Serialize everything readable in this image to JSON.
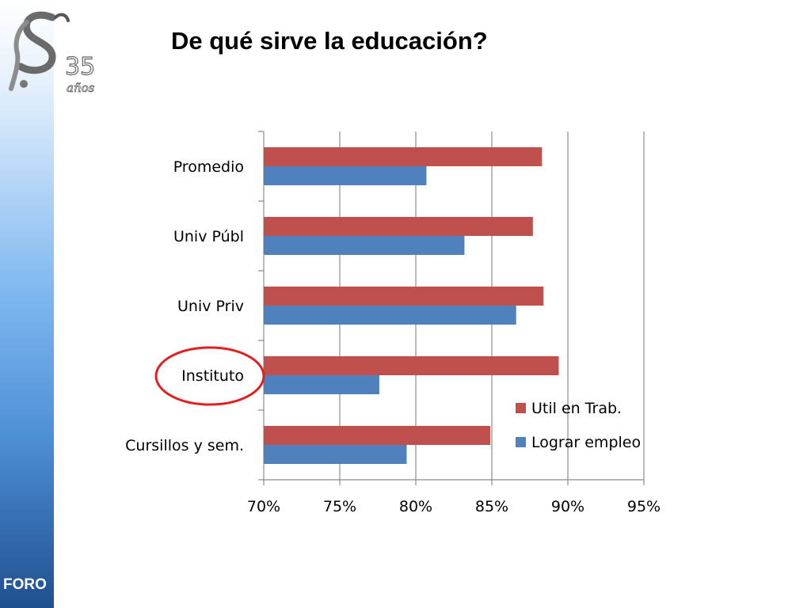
{
  "slide": {
    "title": "De qué sirve la educación?",
    "footer_label": "FORO",
    "logo_icon": "s-35-anos-logo-icon",
    "logo_text": "35 años"
  },
  "chart_data": {
    "type": "bar",
    "orientation": "horizontal",
    "categories": [
      "Promedio",
      "Univ Públ",
      "Univ Priv",
      "Instituto",
      "Cursillos y sem."
    ],
    "series": [
      {
        "name": "Util en Trab.",
        "color": "#c0504d",
        "values": [
          88.3,
          87.7,
          88.4,
          89.4,
          84.9
        ]
      },
      {
        "name": "Lograr empleo",
        "color": "#4f81bd",
        "values": [
          80.7,
          83.2,
          86.6,
          77.6,
          79.4
        ]
      }
    ],
    "xlim": [
      70,
      95
    ],
    "x_ticks": [
      "70%",
      "75%",
      "80%",
      "85%",
      "90%",
      "95%"
    ],
    "grid": true,
    "legend_position": "right-bottom",
    "highlighted_category": "Instituto",
    "highlight_color": "#e02020"
  }
}
